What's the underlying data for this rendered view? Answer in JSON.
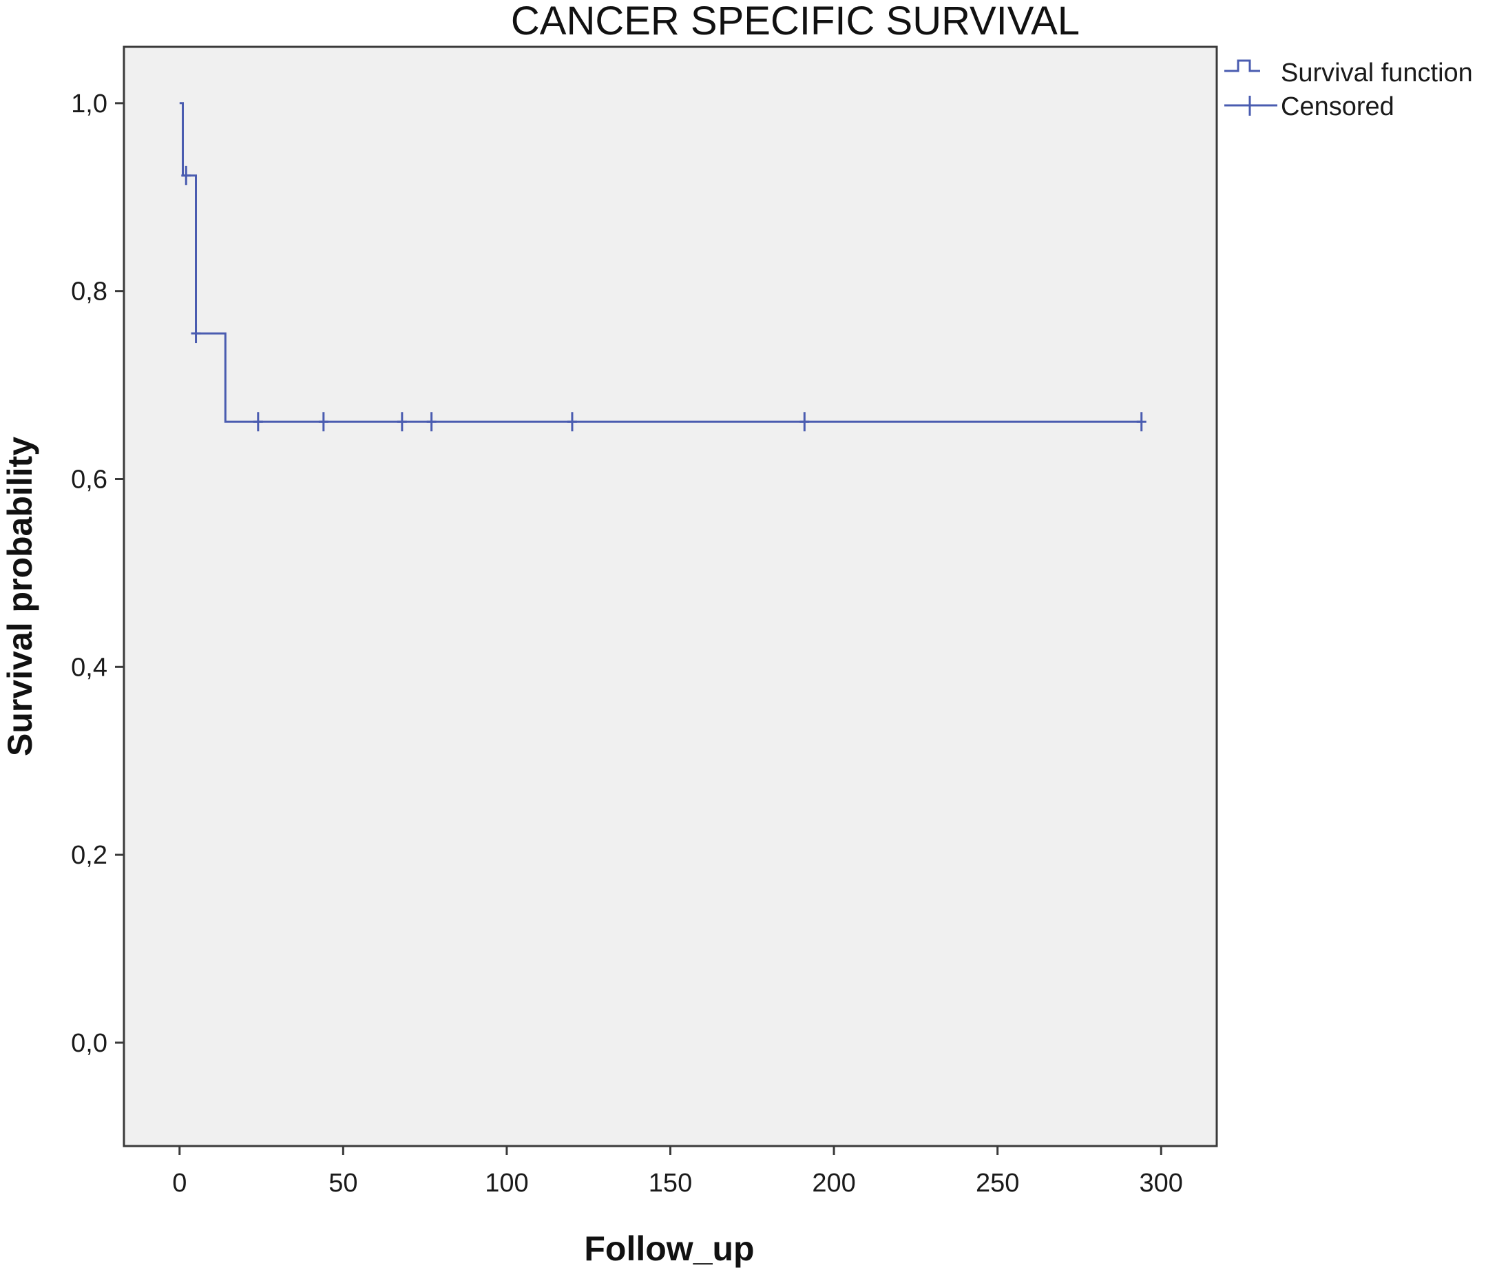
{
  "chart_data": {
    "type": "line",
    "title": "CANCER SPECIFIC SURVIVAL",
    "xlabel": "Follow_up",
    "ylabel": "Survival probability",
    "xlim": [
      -17,
      317
    ],
    "ylim": [
      -0.11,
      1.06
    ],
    "x_ticks": [
      0,
      50,
      100,
      150,
      200,
      250,
      300
    ],
    "x_tick_labels": [
      "0",
      "50",
      "100",
      "150",
      "200",
      "250",
      "300"
    ],
    "y_ticks": [
      0.0,
      0.2,
      0.4,
      0.6,
      0.8,
      1.0
    ],
    "y_tick_labels": [
      "0,0",
      "0,2",
      "0,4",
      "0,6",
      "0,8",
      "1,0"
    ],
    "grid": false,
    "legend_position": "outside-top-right",
    "colors": {
      "line": "#4a5cb0",
      "plot_background": "#f0f0f0",
      "axis": "#3a3a3a"
    },
    "series": [
      {
        "name": "Survival function",
        "style": "step",
        "x": [
          0,
          1,
          1,
          5,
          5,
          14,
          14,
          294
        ],
        "y": [
          1.0,
          1.0,
          0.923,
          0.923,
          0.755,
          0.755,
          0.661,
          0.661
        ]
      },
      {
        "name": "Censored",
        "style": "markers",
        "marker": "+",
        "x": [
          2,
          5,
          24,
          44,
          68,
          77,
          120,
          191,
          294
        ],
        "y": [
          0.923,
          0.755,
          0.661,
          0.661,
          0.661,
          0.661,
          0.661,
          0.661,
          0.661
        ]
      }
    ]
  }
}
